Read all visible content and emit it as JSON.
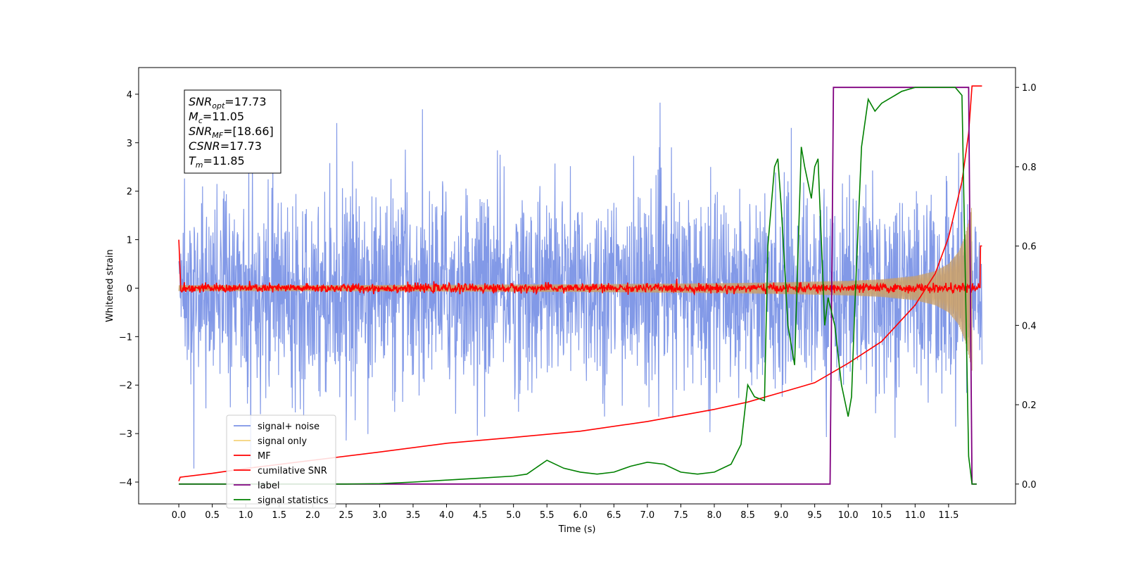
{
  "chart_data": {
    "type": "line",
    "xlabel": "Time (s)",
    "ylabel": "Whitened strain",
    "xlim": [
      -0.6,
      12.5
    ],
    "ylim": [
      -4.45,
      4.55
    ],
    "y2lim": [
      -0.05,
      1.05
    ],
    "xticks": [
      0.0,
      0.5,
      1.0,
      1.5,
      2.0,
      2.5,
      3.0,
      3.5,
      4.0,
      4.5,
      5.0,
      5.5,
      6.0,
      6.5,
      7.0,
      7.5,
      8.0,
      8.5,
      9.0,
      9.5,
      10.0,
      10.5,
      11.0,
      11.5
    ],
    "xtick_labels": [
      "0.0",
      "0.5",
      "1.0",
      "1.5",
      "2.0",
      "2.5",
      "3.0",
      "3.5",
      "4.0",
      "4.5",
      "5.0",
      "5.5",
      "6.0",
      "6.5",
      "7.0",
      "7.5",
      "8.0",
      "8.5",
      "9.0",
      "9.5",
      "10.0",
      "10.5",
      "11.0",
      "11.5"
    ],
    "yticks": [
      -4,
      -3,
      -2,
      -1,
      0,
      1,
      2,
      3,
      4
    ],
    "ytick_labels": [
      "−4",
      "−3",
      "−2",
      "−1",
      "0",
      "1",
      "2",
      "3",
      "4"
    ],
    "y2ticks": [
      0.0,
      0.2,
      0.4,
      0.6,
      0.8,
      1.0
    ],
    "y2tick_labels": [
      "0.0",
      "0.2",
      "0.4",
      "0.6",
      "0.8",
      "1.0"
    ],
    "grid": false,
    "legend_position": "lower-left",
    "legend": [
      {
        "label": "signal+ noise",
        "color": "#7b93e6"
      },
      {
        "label": "signal only",
        "color": "#f5d27a"
      },
      {
        "label": "MF",
        "color": "#ff0000"
      },
      {
        "label": "cumilative SNR",
        "color": "#ff0000"
      },
      {
        "label": "label",
        "color": "#800080"
      },
      {
        "label": "signal statistics",
        "color": "#008000"
      }
    ],
    "series": [
      {
        "name": "signal+ noise",
        "axis": "left",
        "description_of_envelope": "noise roughly within -2.5..2.5 with spikes up to 4.2",
        "time_range": [
          0.0,
          12.0
        ],
        "max": 4.17,
        "min": -3.72
      },
      {
        "name": "signal only",
        "axis": "left",
        "time_range": [
          0.0,
          11.85
        ],
        "envelope": {
          "x": [
            0.0,
            2.0,
            4.0,
            6.0,
            8.0,
            9.0,
            10.0,
            10.5,
            11.0,
            11.3,
            11.5,
            11.65,
            11.75,
            11.82,
            11.85
          ],
          "amplitude": [
            0.06,
            0.06,
            0.07,
            0.08,
            0.1,
            0.12,
            0.15,
            0.18,
            0.25,
            0.35,
            0.5,
            0.75,
            1.1,
            1.5,
            1.7
          ]
        }
      },
      {
        "name": "MF",
        "axis": "left",
        "time_range": [
          0.0,
          12.0
        ],
        "start_value": 1.0,
        "baseline": 0.0,
        "end_value": 0.87
      },
      {
        "name": "cumilative SNR",
        "axis": "left",
        "x": [
          0.0,
          0.02,
          0.5,
          1.0,
          2.0,
          3.0,
          4.0,
          5.0,
          6.0,
          7.0,
          8.0,
          8.5,
          9.0,
          9.5,
          10.0,
          10.5,
          11.0,
          11.3,
          11.5,
          11.7,
          11.8,
          11.85,
          12.0
        ],
        "y": [
          -3.98,
          -3.9,
          -3.82,
          -3.72,
          -3.55,
          -3.38,
          -3.2,
          -3.08,
          -2.95,
          -2.75,
          -2.5,
          -2.35,
          -2.15,
          -1.95,
          -1.55,
          -1.1,
          -0.35,
          0.3,
          1.05,
          2.2,
          3.2,
          4.17,
          4.17
        ]
      },
      {
        "name": "label",
        "axis": "right",
        "x": [
          0.0,
          9.73,
          9.78,
          11.8,
          11.85,
          11.92
        ],
        "y": [
          0.0,
          0.0,
          1.0,
          1.0,
          0.0,
          0.0
        ]
      },
      {
        "name": "signal statistics",
        "axis": "right",
        "x": [
          0.0,
          1.0,
          2.0,
          2.5,
          3.0,
          3.5,
          4.0,
          4.5,
          5.0,
          5.2,
          5.5,
          5.75,
          6.0,
          6.25,
          6.5,
          6.75,
          7.0,
          7.25,
          7.5,
          7.75,
          8.0,
          8.25,
          8.4,
          8.5,
          8.6,
          8.75,
          8.8,
          8.9,
          8.95,
          9.0,
          9.1,
          9.2,
          9.3,
          9.35,
          9.45,
          9.5,
          9.55,
          9.65,
          9.7,
          9.8,
          9.9,
          10.0,
          10.05,
          10.1,
          10.2,
          10.3,
          10.4,
          10.5,
          10.6,
          10.7,
          10.8,
          11.0,
          11.2,
          11.4,
          11.6,
          11.7,
          11.8,
          11.85,
          11.92
        ],
        "y": [
          0.0,
          0.0,
          0.0,
          0.0,
          0.001,
          0.005,
          0.01,
          0.015,
          0.02,
          0.025,
          0.06,
          0.04,
          0.03,
          0.025,
          0.03,
          0.045,
          0.055,
          0.05,
          0.03,
          0.025,
          0.03,
          0.05,
          0.1,
          0.25,
          0.22,
          0.21,
          0.6,
          0.8,
          0.82,
          0.7,
          0.4,
          0.3,
          0.85,
          0.8,
          0.72,
          0.8,
          0.82,
          0.4,
          0.47,
          0.4,
          0.25,
          0.17,
          0.22,
          0.45,
          0.85,
          0.97,
          0.94,
          0.96,
          0.97,
          0.98,
          0.99,
          1.0,
          1.0,
          1.0,
          1.0,
          0.98,
          0.07,
          0.0,
          0.0
        ]
      }
    ],
    "annotation": {
      "lines": [
        {
          "base": "SNR",
          "sub": "opt",
          "value": "=17.73"
        },
        {
          "base": "M",
          "sub": "c",
          "value": "=11.05"
        },
        {
          "base": "SNR",
          "sub": "MF",
          "value": "=[18.66]"
        },
        {
          "base": "CSNR",
          "sub": "",
          "value": "=17.73"
        },
        {
          "base": "T",
          "sub": "m",
          "value": "=11.85"
        }
      ]
    }
  }
}
